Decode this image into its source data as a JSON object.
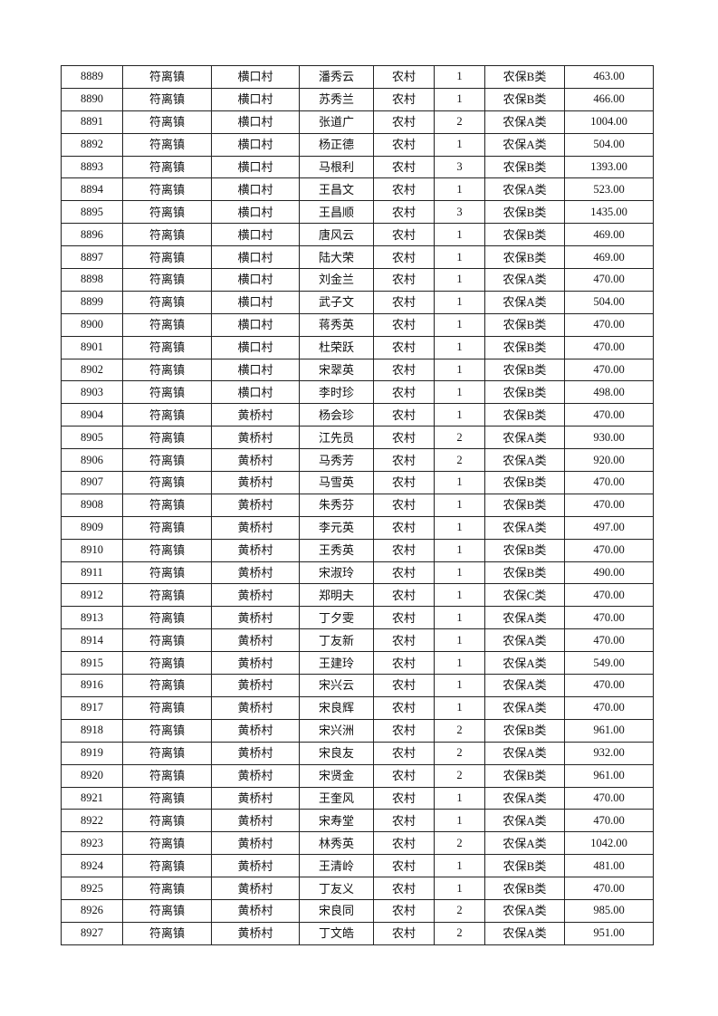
{
  "table": {
    "rows": [
      [
        "8889",
        "符离镇",
        "横口村",
        "潘秀云",
        "农村",
        "1",
        "农保B类",
        "463.00"
      ],
      [
        "8890",
        "符离镇",
        "横口村",
        "苏秀兰",
        "农村",
        "1",
        "农保B类",
        "466.00"
      ],
      [
        "8891",
        "符离镇",
        "横口村",
        "张道广",
        "农村",
        "2",
        "农保A类",
        "1004.00"
      ],
      [
        "8892",
        "符离镇",
        "横口村",
        "杨正德",
        "农村",
        "1",
        "农保A类",
        "504.00"
      ],
      [
        "8893",
        "符离镇",
        "横口村",
        "马根利",
        "农村",
        "3",
        "农保B类",
        "1393.00"
      ],
      [
        "8894",
        "符离镇",
        "横口村",
        "王昌文",
        "农村",
        "1",
        "农保A类",
        "523.00"
      ],
      [
        "8895",
        "符离镇",
        "横口村",
        "王昌顺",
        "农村",
        "3",
        "农保B类",
        "1435.00"
      ],
      [
        "8896",
        "符离镇",
        "横口村",
        "唐风云",
        "农村",
        "1",
        "农保B类",
        "469.00"
      ],
      [
        "8897",
        "符离镇",
        "横口村",
        "陆大荣",
        "农村",
        "1",
        "农保B类",
        "469.00"
      ],
      [
        "8898",
        "符离镇",
        "横口村",
        "刘金兰",
        "农村",
        "1",
        "农保A类",
        "470.00"
      ],
      [
        "8899",
        "符离镇",
        "横口村",
        "武子文",
        "农村",
        "1",
        "农保A类",
        "504.00"
      ],
      [
        "8900",
        "符离镇",
        "横口村",
        "蒋秀英",
        "农村",
        "1",
        "农保B类",
        "470.00"
      ],
      [
        "8901",
        "符离镇",
        "横口村",
        "杜荣跃",
        "农村",
        "1",
        "农保B类",
        "470.00"
      ],
      [
        "8902",
        "符离镇",
        "横口村",
        "宋翠英",
        "农村",
        "1",
        "农保B类",
        "470.00"
      ],
      [
        "8903",
        "符离镇",
        "横口村",
        "李时珍",
        "农村",
        "1",
        "农保B类",
        "498.00"
      ],
      [
        "8904",
        "符离镇",
        "黄桥村",
        "杨会珍",
        "农村",
        "1",
        "农保B类",
        "470.00"
      ],
      [
        "8905",
        "符离镇",
        "黄桥村",
        "江先员",
        "农村",
        "2",
        "农保A类",
        "930.00"
      ],
      [
        "8906",
        "符离镇",
        "黄桥村",
        "马秀芳",
        "农村",
        "2",
        "农保A类",
        "920.00"
      ],
      [
        "8907",
        "符离镇",
        "黄桥村",
        "马雪英",
        "农村",
        "1",
        "农保B类",
        "470.00"
      ],
      [
        "8908",
        "符离镇",
        "黄桥村",
        "朱秀芬",
        "农村",
        "1",
        "农保B类",
        "470.00"
      ],
      [
        "8909",
        "符离镇",
        "黄桥村",
        "李元英",
        "农村",
        "1",
        "农保A类",
        "497.00"
      ],
      [
        "8910",
        "符离镇",
        "黄桥村",
        "王秀英",
        "农村",
        "1",
        "农保B类",
        "470.00"
      ],
      [
        "8911",
        "符离镇",
        "黄桥村",
        "宋淑玲",
        "农村",
        "1",
        "农保B类",
        "490.00"
      ],
      [
        "8912",
        "符离镇",
        "黄桥村",
        "郑明夫",
        "农村",
        "1",
        "农保C类",
        "470.00"
      ],
      [
        "8913",
        "符离镇",
        "黄桥村",
        "丁夕雯",
        "农村",
        "1",
        "农保A类",
        "470.00"
      ],
      [
        "8914",
        "符离镇",
        "黄桥村",
        "丁友新",
        "农村",
        "1",
        "农保A类",
        "470.00"
      ],
      [
        "8915",
        "符离镇",
        "黄桥村",
        "王建玲",
        "农村",
        "1",
        "农保A类",
        "549.00"
      ],
      [
        "8916",
        "符离镇",
        "黄桥村",
        "宋兴云",
        "农村",
        "1",
        "农保A类",
        "470.00"
      ],
      [
        "8917",
        "符离镇",
        "黄桥村",
        "宋良辉",
        "农村",
        "1",
        "农保A类",
        "470.00"
      ],
      [
        "8918",
        "符离镇",
        "黄桥村",
        "宋兴洲",
        "农村",
        "2",
        "农保B类",
        "961.00"
      ],
      [
        "8919",
        "符离镇",
        "黄桥村",
        "宋良友",
        "农村",
        "2",
        "农保A类",
        "932.00"
      ],
      [
        "8920",
        "符离镇",
        "黄桥村",
        "宋贤金",
        "农村",
        "2",
        "农保B类",
        "961.00"
      ],
      [
        "8921",
        "符离镇",
        "黄桥村",
        "王奎风",
        "农村",
        "1",
        "农保A类",
        "470.00"
      ],
      [
        "8922",
        "符离镇",
        "黄桥村",
        "宋寿堂",
        "农村",
        "1",
        "农保A类",
        "470.00"
      ],
      [
        "8923",
        "符离镇",
        "黄桥村",
        "林秀英",
        "农村",
        "2",
        "农保A类",
        "1042.00"
      ],
      [
        "8924",
        "符离镇",
        "黄桥村",
        "王清岭",
        "农村",
        "1",
        "农保B类",
        "481.00"
      ],
      [
        "8925",
        "符离镇",
        "黄桥村",
        "丁友义",
        "农村",
        "1",
        "农保B类",
        "470.00"
      ],
      [
        "8926",
        "符离镇",
        "黄桥村",
        "宋良同",
        "农村",
        "2",
        "农保A类",
        "985.00"
      ],
      [
        "8927",
        "符离镇",
        "黄桥村",
        "丁文皓",
        "农村",
        "2",
        "农保A类",
        "951.00"
      ]
    ]
  }
}
